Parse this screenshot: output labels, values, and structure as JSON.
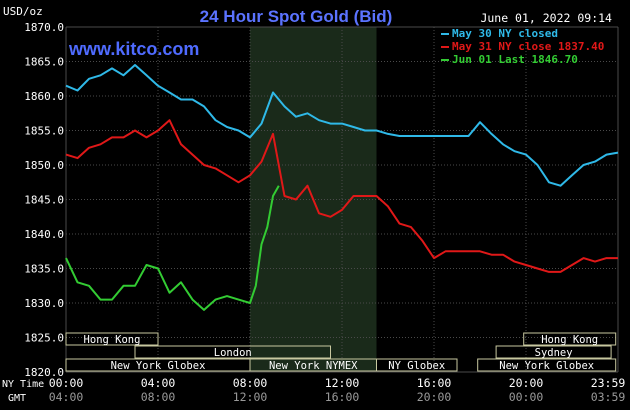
{
  "chart_data": {
    "type": "line",
    "title": "24 Hour Spot Gold (Bid)",
    "watermark": "www.kitco.com",
    "timestamp": "June 01, 2022 09:14",
    "unit_label": "USD/oz",
    "ylim": [
      1820,
      1870
    ],
    "y_ticks": [
      "1870.0",
      "1865.0",
      "1860.0",
      "1855.0",
      "1850.0",
      "1845.0",
      "1840.0",
      "1835.0",
      "1830.0",
      "1825.0",
      "1820.0"
    ],
    "x_axis_label_ny": "NY Time",
    "x_axis_label_gmt": "GMT",
    "x_ticks_ny": [
      "00:00",
      "04:00",
      "08:00",
      "12:00",
      "16:00",
      "20:00",
      "23:59"
    ],
    "x_ticks_gmt": [
      "04:00",
      "08:00",
      "12:00",
      "16:00",
      "20:00",
      "00:00",
      "03:59"
    ],
    "grid": true,
    "legend_position": "top-right",
    "shaded_region_hours": [
      8.0,
      13.5
    ],
    "colors": {
      "background": "#000000",
      "title": "#5b73ff",
      "watermark": "#4f6bff",
      "grid": "#4a4a4a",
      "text": "#ffffff",
      "shade": "#1a2a1a",
      "market_box": "#c8c8a0"
    },
    "series": [
      {
        "name": "May 30 NY closed",
        "color": "#2fb9e8",
        "x": [
          0,
          0.5,
          1,
          1.5,
          2,
          2.5,
          3,
          3.5,
          4,
          4.5,
          5,
          5.5,
          6,
          6.5,
          7,
          7.5,
          8,
          8.5,
          9,
          9.5,
          10,
          10.5,
          11,
          11.5,
          12,
          12.5,
          13,
          13.5,
          14,
          14.5,
          15,
          15.5,
          16,
          16.5,
          17,
          17.5,
          18,
          18.5,
          19,
          19.5,
          20,
          20.5,
          21,
          21.5,
          22,
          22.5,
          23,
          23.5,
          24
        ],
        "values": [
          1861.5,
          1860.8,
          1862.5,
          1863.0,
          1864.0,
          1863.0,
          1864.5,
          1863.0,
          1861.5,
          1860.5,
          1859.5,
          1859.5,
          1858.5,
          1856.5,
          1855.5,
          1855.0,
          1854.0,
          1856.0,
          1860.5,
          1858.5,
          1857.0,
          1857.5,
          1856.5,
          1856.0,
          1856.0,
          1855.5,
          1855.0,
          1855.0,
          1854.5,
          1854.2,
          1854.2,
          1854.2,
          1854.2,
          1854.2,
          1854.2,
          1854.2,
          1856.2,
          1854.5,
          1853.0,
          1852.0,
          1851.5,
          1850.0,
          1847.5,
          1847.0,
          1848.5,
          1850.0,
          1850.5,
          1851.5,
          1851.8
        ]
      },
      {
        "name": "May 31 NY close 1837.40",
        "color": "#e01818",
        "x": [
          0,
          0.5,
          1,
          1.5,
          2,
          2.5,
          3,
          3.5,
          4,
          4.5,
          5,
          5.5,
          6,
          6.5,
          7,
          7.5,
          8,
          8.5,
          9,
          9.5,
          10,
          10.5,
          11,
          11.5,
          12,
          12.5,
          13,
          13.5,
          14,
          14.5,
          15,
          15.5,
          16,
          16.5,
          17,
          17.5,
          18,
          18.5,
          19,
          19.5,
          20,
          20.5,
          21,
          21.5,
          22,
          22.5,
          23,
          23.5,
          24
        ],
        "values": [
          1851.5,
          1851.0,
          1852.5,
          1853.0,
          1854.0,
          1854.0,
          1855.0,
          1854.0,
          1855.0,
          1856.5,
          1853.0,
          1851.5,
          1850.0,
          1849.5,
          1848.5,
          1847.5,
          1848.5,
          1850.5,
          1854.5,
          1845.5,
          1845.0,
          1847.0,
          1843.0,
          1842.5,
          1843.5,
          1845.5,
          1845.5,
          1845.5,
          1844.0,
          1841.5,
          1841.0,
          1839.0,
          1836.5,
          1837.5,
          1837.5,
          1837.5,
          1837.5,
          1837.0,
          1837.0,
          1836.0,
          1835.5,
          1835.0,
          1834.5,
          1834.5,
          1835.5,
          1836.5,
          1836.0,
          1836.5,
          1836.5
        ]
      },
      {
        "name": "Jun 01 Last 1846.70",
        "color": "#33cc33",
        "x": [
          0,
          0.5,
          1,
          1.5,
          2,
          2.5,
          3,
          3.5,
          4,
          4.5,
          5,
          5.5,
          6,
          6.5,
          7,
          7.5,
          8,
          8.25,
          8.5,
          8.75,
          9,
          9.25
        ],
        "values": [
          1836.5,
          1833.0,
          1832.5,
          1830.5,
          1830.5,
          1832.5,
          1832.5,
          1835.5,
          1835.0,
          1831.5,
          1833.0,
          1830.5,
          1829.0,
          1830.5,
          1831.0,
          1830.5,
          1830.0,
          1832.5,
          1838.5,
          1841.0,
          1845.5,
          1847.0
        ]
      }
    ],
    "market_sessions": [
      {
        "label": "Hong Kong",
        "start": 0,
        "end": 4,
        "row": 0
      },
      {
        "label": "Hong Kong",
        "start": 19.9,
        "end": 23.9,
        "row": 0
      },
      {
        "label": "London",
        "start": 3.0,
        "end": 11.5,
        "row": 1
      },
      {
        "label": "Sydney",
        "start": 18.7,
        "end": 23.7,
        "row": 1
      },
      {
        "label": "New York Globex",
        "start": 0,
        "end": 8.0,
        "row": 2
      },
      {
        "label": "New York NYMEX",
        "start": 8.0,
        "end": 13.5,
        "row": 2
      },
      {
        "label": "NY Globex",
        "start": 13.5,
        "end": 17.0,
        "row": 2
      },
      {
        "label": "New York Globex",
        "start": 17.9,
        "end": 23.9,
        "row": 2
      }
    ]
  }
}
